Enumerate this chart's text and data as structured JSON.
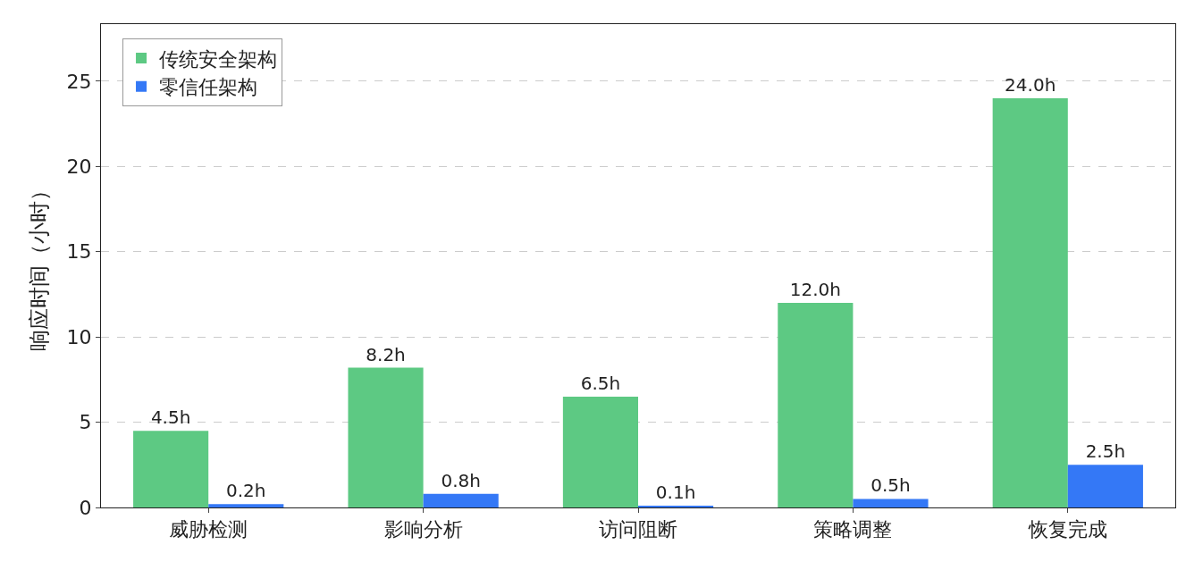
{
  "chart_data": {
    "type": "bar",
    "ylabel": "响应时间（小时）",
    "categories": [
      "威胁检测",
      "影响分析",
      "访问阻断",
      "策略调整",
      "恢复完成"
    ],
    "series": [
      {
        "name": "传统安全架构",
        "color": "#5dc983",
        "values": [
          4.5,
          8.2,
          6.5,
          12.0,
          24.0
        ],
        "value_labels": [
          "4.5h",
          "8.2h",
          "6.5h",
          "12.0h",
          "24.0h"
        ]
      },
      {
        "name": "零信任架构",
        "color": "#3478f6",
        "values": [
          0.2,
          0.8,
          0.1,
          0.5,
          2.5
        ],
        "value_labels": [
          "0.2h",
          "0.8h",
          "0.1h",
          "0.5h",
          "2.5h"
        ]
      }
    ],
    "ylim": [
      0,
      28.35
    ],
    "yticks": [
      0,
      5,
      10,
      15,
      20,
      25
    ],
    "grid": "y",
    "legend": "top left"
  }
}
